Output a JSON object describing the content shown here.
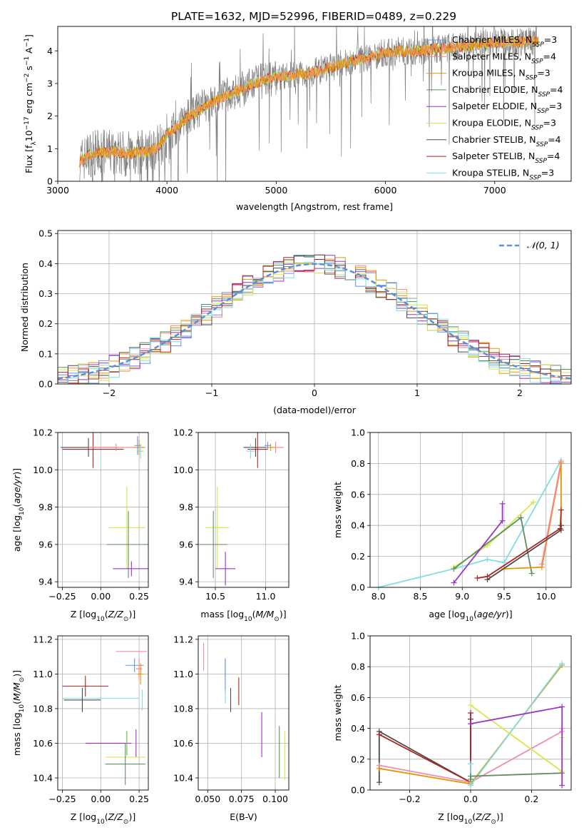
{
  "title": "PLATE=1632, MJD=52996, FIBERID=0489, z=0.229",
  "colors": {
    "Chabrier MILES": "#6495ed",
    "Salpeter MILES": "#ff7f7f",
    "Kroupa MILES": "#e69500",
    "Chabrier ELODIE": "#5f8f5f",
    "Salpeter ELODIE": "#9932cc",
    "Kroupa ELODIE": "#d4e84a",
    "Chabrier STELIB": "#4a4a4a",
    "Salpeter STELIB": "#b22222",
    "Kroupa STELIB": "#7fdde0",
    "data": "#808080",
    "gauss": "#5b8fd6",
    "grid": "#b0b0b0",
    "extra1": "#f08cb4",
    "extra2": "#66bb33"
  },
  "chart_data": [
    {
      "id": "spectrum",
      "type": "line",
      "xlabel": "wavelength [Angstrom, rest frame]",
      "ylabel": "Flux [f_λ10^-17 erg cm^-2 s^-1 A^-1]",
      "xlim": [
        3000,
        7700
      ],
      "ylim": [
        0,
        4.75
      ],
      "xticks": [
        3000,
        4000,
        5000,
        6000,
        7000
      ],
      "yticks": [
        0,
        1,
        2,
        3,
        4
      ],
      "legend_loc": "upper right",
      "legend": [
        {
          "name": "Chabrier MILES",
          "nssp": "3"
        },
        {
          "name": "Salpeter MILES",
          "nssp": "4"
        },
        {
          "name": "Kroupa MILES",
          "nssp": "3"
        },
        {
          "name": "Chabrier ELODIE",
          "nssp": "4"
        },
        {
          "name": "Salpeter ELODIE",
          "nssp": "3"
        },
        {
          "name": "Kroupa ELODIE",
          "nssp": "3"
        },
        {
          "name": "Chabrier STELIB",
          "nssp": "4"
        },
        {
          "name": "Salpeter STELIB",
          "nssp": "4"
        },
        {
          "name": "Kroupa STELIB",
          "nssp": "3"
        }
      ],
      "continuum": [
        [
          3200,
          0.6
        ],
        [
          3300,
          0.85
        ],
        [
          3500,
          0.9
        ],
        [
          3650,
          0.85
        ],
        [
          3800,
          0.9
        ],
        [
          3900,
          1.0
        ],
        [
          4000,
          1.4
        ],
        [
          4200,
          2.0
        ],
        [
          4400,
          2.4
        ],
        [
          4600,
          2.7
        ],
        [
          4800,
          3.0
        ],
        [
          5000,
          3.2
        ],
        [
          5300,
          3.3
        ],
        [
          5600,
          3.6
        ],
        [
          6000,
          3.95
        ],
        [
          6300,
          4.0
        ],
        [
          6600,
          4.1
        ],
        [
          7000,
          4.25
        ],
        [
          7400,
          4.3
        ]
      ]
    },
    {
      "id": "residuals",
      "type": "line",
      "xlabel": "(data-model)/error",
      "ylabel": "Normed distribution",
      "xlim": [
        -2.5,
        2.5
      ],
      "ylim": [
        0,
        0.51
      ],
      "xticks": [
        -2,
        -1,
        0,
        1,
        2
      ],
      "yticks": [
        0.0,
        0.1,
        0.2,
        0.3,
        0.4,
        0.5
      ],
      "legend": "N(0,1)",
      "gaussian_sigma": 1.0
    },
    {
      "id": "age-vs-Z",
      "type": "scatter",
      "xlabel": "Z [log10(Z/Z⊙)]",
      "ylabel": "age  [log10(age/yr)]",
      "xlim": [
        -0.28,
        0.31
      ],
      "ylim": [
        9.37,
        10.2
      ],
      "xticks": [
        -0.25,
        0.0,
        0.25
      ],
      "yticks": [
        9.4,
        9.6,
        9.8,
        10.0,
        10.2
      ],
      "points": [
        {
          "x": -0.08,
          "y": 10.12,
          "xerr": 0.18,
          "yerr": 0.05,
          "c": "Chabrier STELIB"
        },
        {
          "x": -0.05,
          "y": 10.11,
          "xerr": 0.2,
          "yerr": 0.1,
          "c": "Salpeter STELIB"
        },
        {
          "x": 0.1,
          "y": 10.12,
          "xerr": 0.18,
          "yerr": 0.02,
          "c": "Salpeter MILES"
        },
        {
          "x": 0.25,
          "y": 10.12,
          "xerr": 0.04,
          "yerr": 0.04,
          "c": "Kroupa MILES"
        },
        {
          "x": 0.26,
          "y": 10.1,
          "xerr": 0.02,
          "yerr": 0.04,
          "c": "Kroupa STELIB"
        },
        {
          "x": 0.24,
          "y": 10.13,
          "xerr": 0.02,
          "yerr": 0.05,
          "c": "Chabrier MILES"
        },
        {
          "x": 0.17,
          "y": 9.69,
          "xerr": 0.12,
          "yerr": 0.22,
          "c": "Kroupa ELODIE"
        },
        {
          "x": 0.18,
          "y": 9.6,
          "xerr": 0.14,
          "yerr": 0.18,
          "c": "Chabrier ELODIE"
        },
        {
          "x": 0.2,
          "y": 9.47,
          "xerr": 0.12,
          "yerr": 0.04,
          "c": "Salpeter ELODIE"
        }
      ]
    },
    {
      "id": "age-vs-mass",
      "type": "scatter",
      "xlabel": "mass [log10(M/M⊙)]",
      "ylabel": "",
      "xlim": [
        10.33,
        11.23
      ],
      "ylim": [
        9.37,
        10.2
      ],
      "xticks": [
        10.5,
        11.0
      ],
      "yticks": [
        9.4,
        9.6,
        9.8,
        10.0,
        10.2
      ],
      "points": [
        {
          "x": 10.9,
          "y": 10.12,
          "xerr": 0.12,
          "yerr": 0.05,
          "c": "Chabrier STELIB"
        },
        {
          "x": 10.92,
          "y": 10.11,
          "xerr": 0.1,
          "yerr": 0.1,
          "c": "Salpeter STELIB"
        },
        {
          "x": 11.1,
          "y": 10.12,
          "xerr": 0.08,
          "yerr": 0.03,
          "c": "Salpeter MILES"
        },
        {
          "x": 11.05,
          "y": 10.12,
          "xerr": 0.05,
          "yerr": 0.02,
          "c": "Kroupa MILES"
        },
        {
          "x": 10.85,
          "y": 10.1,
          "xerr": 0.04,
          "yerr": 0.04,
          "c": "Kroupa STELIB"
        },
        {
          "x": 11.02,
          "y": 10.13,
          "xerr": 0.03,
          "yerr": 0.02,
          "c": "Chabrier MILES"
        },
        {
          "x": 10.52,
          "y": 9.69,
          "xerr": 0.12,
          "yerr": 0.22,
          "c": "Kroupa ELODIE"
        },
        {
          "x": 10.48,
          "y": 9.6,
          "xerr": 0.14,
          "yerr": 0.18,
          "c": "Chabrier ELODIE"
        },
        {
          "x": 10.6,
          "y": 9.47,
          "xerr": 0.1,
          "yerr": 0.09,
          "c": "Salpeter ELODIE"
        }
      ]
    },
    {
      "id": "weight-vs-age",
      "type": "line",
      "xlabel": "age  [log10(age/yr)]",
      "ylabel": "mass weight",
      "xlim": [
        7.9,
        10.3
      ],
      "ylim": [
        0.0,
        1.0
      ],
      "xticks": [
        8.0,
        8.5,
        9.0,
        9.5,
        10.0
      ],
      "yticks": [
        0.0,
        0.2,
        0.4,
        0.6,
        0.8,
        1.0
      ],
      "series": [
        {
          "c": "Kroupa STELIB",
          "x": [
            8.0,
            8.9,
            9.3,
            9.5,
            10.18
          ],
          "y": [
            0.0,
            0.12,
            0.18,
            0.16,
            0.82
          ]
        },
        {
          "c": "Kroupa ELODIE",
          "x": [
            8.9,
            9.3,
            9.85
          ],
          "y": [
            0.13,
            0.27,
            0.55
          ]
        },
        {
          "c": "Chabrier ELODIE",
          "x": [
            8.9,
            9.7,
            9.83
          ],
          "y": [
            0.12,
            0.45,
            0.09
          ]
        },
        {
          "c": "Salpeter ELODIE",
          "x": [
            8.9,
            9.48,
            9.48
          ],
          "y": [
            0.03,
            0.43,
            0.54
          ]
        },
        {
          "c": "Kroupa MILES",
          "x": [
            9.5,
            9.95,
            10.18,
            10.18
          ],
          "y": [
            0.12,
            0.13,
            0.8,
            0.4
          ]
        },
        {
          "c": "Salpeter MILES",
          "x": [
            9.95,
            10.18
          ],
          "y": [
            0.15,
            0.81
          ]
        },
        {
          "c": "Chabrier STELIB",
          "x": [
            9.3,
            10.18,
            10.18
          ],
          "y": [
            0.05,
            0.37,
            0.4
          ]
        },
        {
          "c": "Salpeter STELIB",
          "x": [
            9.18,
            9.3,
            10.17,
            10.18
          ],
          "y": [
            0.06,
            0.07,
            0.38,
            0.5
          ]
        }
      ]
    },
    {
      "id": "mass-vs-Z",
      "type": "scatter",
      "xlabel": "Z [log10(Z/Z⊙)]",
      "ylabel": "mass [log10(M/M⊙)]",
      "xlim": [
        -0.28,
        0.31
      ],
      "ylim": [
        10.33,
        11.22
      ],
      "xticks": [
        -0.25,
        0.0,
        0.25
      ],
      "yticks": [
        10.4,
        10.6,
        10.8,
        11.0,
        11.2
      ],
      "points": [
        {
          "x": 0.2,
          "y": 11.13,
          "xerr": 0.1,
          "yerr": 0.0,
          "c": "extra1"
        },
        {
          "x": 0.22,
          "y": 11.05,
          "xerr": 0.06,
          "yerr": 0.04,
          "c": "Chabrier MILES"
        },
        {
          "x": 0.25,
          "y": 11.03,
          "xerr": 0.02,
          "yerr": 0.06,
          "c": "Salpeter MILES"
        },
        {
          "x": 0.26,
          "y": 11.0,
          "xerr": 0.02,
          "yerr": 0.06,
          "c": "Kroupa MILES"
        },
        {
          "x": -0.1,
          "y": 10.93,
          "xerr": 0.15,
          "yerr": 0.06,
          "c": "Salpeter STELIB"
        },
        {
          "x": 0.0,
          "y": 10.86,
          "xerr": 0.25,
          "yerr": 0.0,
          "c": "Kroupa STELIB"
        },
        {
          "x": -0.12,
          "y": 10.85,
          "xerr": 0.12,
          "yerr": 0.07,
          "c": "Chabrier STELIB"
        },
        {
          "x": 0.27,
          "y": 10.85,
          "xerr": 0.0,
          "yerr": 0.06,
          "c": "Kroupa STELIB"
        },
        {
          "x": 0.05,
          "y": 10.6,
          "xerr": 0.15,
          "yerr": 0.0,
          "c": "Salpeter ELODIE"
        },
        {
          "x": 0.17,
          "y": 10.6,
          "xerr": 0.0,
          "yerr": 0.07,
          "c": "extra2"
        },
        {
          "x": 0.23,
          "y": 10.6,
          "xerr": 0.0,
          "yerr": 0.08,
          "c": "Salpeter ELODIE"
        },
        {
          "x": 0.16,
          "y": 10.52,
          "xerr": 0.13,
          "yerr": 0.0,
          "c": "Kroupa ELODIE"
        },
        {
          "x": 0.16,
          "y": 10.48,
          "xerr": 0.13,
          "yerr": 0.12,
          "c": "Chabrier ELODIE"
        }
      ]
    },
    {
      "id": "mass-vs-EBV",
      "type": "scatter",
      "xlabel": "E(B-V)",
      "ylabel": "",
      "xlim": [
        0.043,
        0.11
      ],
      "ylim": [
        10.33,
        11.22
      ],
      "xticks": [
        0.05,
        0.075,
        0.1
      ],
      "xticklabels": [
        "0.050",
        "0.075",
        "0.100"
      ],
      "yticks": [
        10.4,
        10.6,
        10.8,
        11.0,
        11.2
      ],
      "points": [
        {
          "x": 0.047,
          "y": 11.1,
          "xerr": 0.0,
          "yerr": 0.08,
          "c": "extra1"
        },
        {
          "x": 0.063,
          "y": 11.03,
          "xerr": 0.0,
          "yerr": 0.06,
          "c": "Kroupa MILES"
        },
        {
          "x": 0.063,
          "y": 10.99,
          "xerr": 0.0,
          "yerr": 0.1,
          "c": "Chabrier MILES"
        },
        {
          "x": 0.063,
          "y": 10.87,
          "xerr": 0.0,
          "yerr": 0.04,
          "c": "Kroupa STELIB"
        },
        {
          "x": 0.067,
          "y": 10.85,
          "xerr": 0.0,
          "yerr": 0.07,
          "c": "Chabrier STELIB"
        },
        {
          "x": 0.073,
          "y": 10.9,
          "xerr": 0.0,
          "yerr": 0.08,
          "c": "Salpeter STELIB"
        },
        {
          "x": 0.09,
          "y": 10.65,
          "xerr": 0.0,
          "yerr": 0.13,
          "c": "Salpeter ELODIE"
        },
        {
          "x": 0.103,
          "y": 10.55,
          "xerr": 0.0,
          "yerr": 0.15,
          "c": "Chabrier ELODIE"
        },
        {
          "x": 0.107,
          "y": 10.53,
          "xerr": 0.0,
          "yerr": 0.14,
          "c": "Kroupa ELODIE"
        }
      ]
    },
    {
      "id": "weight-vs-Z",
      "type": "line",
      "xlabel": "Z [log10(Z/Z⊙)]",
      "ylabel": "mass weight",
      "xlim": [
        -0.33,
        0.33
      ],
      "ylim": [
        0.0,
        1.0
      ],
      "xticks": [
        -0.2,
        0.0,
        0.2
      ],
      "yticks": [
        0.0,
        0.2,
        0.4,
        0.6,
        0.8,
        1.0
      ],
      "series": [
        {
          "c": "Chabrier STELIB",
          "x": [
            -0.3,
            -0.3,
            0.0,
            0.0
          ],
          "y": [
            0.05,
            0.38,
            0.05,
            0.46
          ]
        },
        {
          "c": "Salpeter STELIB",
          "x": [
            -0.3,
            0.0,
            0.0,
            0.0
          ],
          "y": [
            0.36,
            0.05,
            0.5,
            0.05
          ]
        },
        {
          "c": "extra1",
          "x": [
            -0.3,
            0.0,
            0.3,
            0.3
          ],
          "y": [
            0.16,
            0.05,
            0.38,
            0.4
          ]
        },
        {
          "c": "Kroupa MILES",
          "x": [
            -0.3,
            0.0,
            0.3
          ],
          "y": [
            0.14,
            0.04,
            0.81
          ]
        },
        {
          "c": "Kroupa STELIB",
          "x": [
            0.0,
            0.0,
            0.3
          ],
          "y": [
            0.17,
            0.03,
            0.82
          ]
        },
        {
          "c": "Kroupa ELODIE",
          "x": [
            0.0,
            0.3,
            0.3
          ],
          "y": [
            0.55,
            0.12,
            0.34
          ]
        },
        {
          "c": "Chabrier ELODIE",
          "x": [
            0.0,
            0.0,
            0.3
          ],
          "y": [
            0.07,
            0.09,
            0.11
          ]
        },
        {
          "c": "Salpeter ELODIE",
          "x": [
            0.0,
            0.3,
            0.3
          ],
          "y": [
            0.43,
            0.54,
            0.03
          ]
        }
      ]
    }
  ]
}
